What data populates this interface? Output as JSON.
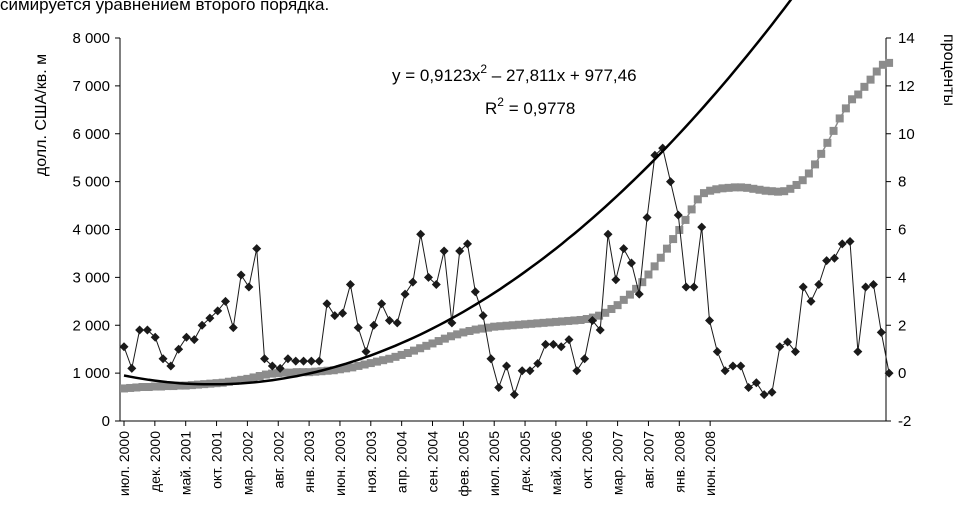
{
  "caption": "симируется уравнением второго порядка.",
  "chart_data": {
    "type": "line",
    "ylabel": "долл. США/кв. м",
    "y2label": "проценты",
    "ylim": [
      0,
      8000
    ],
    "y2lim": [
      -2,
      14
    ],
    "yticks": [
      "0",
      "1 000",
      "2 000",
      "3 000",
      "4 000",
      "5 000",
      "6 000",
      "7 000",
      "8 000"
    ],
    "y2ticks": [
      "-2",
      "0",
      "2",
      "4",
      "6",
      "8",
      "10",
      "12",
      "14"
    ],
    "x_tick_labels": [
      "июл. 2000",
      "дек. 2000",
      "май. 2001",
      "окт. 2001",
      "мар. 2002",
      "авг. 2002",
      "янв. 2003",
      "июн. 2003",
      "ноя. 2003",
      "апр. 2004",
      "сен. 2004",
      "фев. 2005",
      "июл. 2005",
      "дек. 2005",
      "май. 2006",
      "окт. 2006",
      "мар. 2007",
      "авг. 2007",
      "янв. 2008",
      "июн. 2008"
    ],
    "x_start": "июл. 2000",
    "trend_equation": {
      "prefix": "y = 0,9123x",
      "sup1": "2",
      "middle": " – 27,811x + 977,46",
      "r2_prefix": "R",
      "r2_sup": "2",
      "r2_value": " = 0,9778"
    },
    "series": [
      {
        "axis": "left",
        "marker": "square",
        "color": "#8c8c8c",
        "values": [
          680,
          690,
          700,
          710,
          710,
          720,
          720,
          730,
          730,
          740,
          740,
          750,
          760,
          770,
          780,
          790,
          800,
          820,
          840,
          860,
          880,
          910,
          940,
          970,
          990,
          1000,
          1010,
          1010,
          1020,
          1020,
          1020,
          1030,
          1040,
          1050,
          1060,
          1080,
          1100,
          1120,
          1150,
          1180,
          1210,
          1240,
          1270,
          1300,
          1340,
          1380,
          1420,
          1470,
          1520,
          1570,
          1620,
          1670,
          1720,
          1770,
          1810,
          1850,
          1880,
          1910,
          1930,
          1950,
          1970,
          1980,
          1990,
          2000,
          2010,
          2020,
          2030,
          2040,
          2050,
          2060,
          2070,
          2080,
          2090,
          2100,
          2110,
          2130,
          2160,
          2200,
          2260,
          2340,
          2420,
          2530,
          2640,
          2760,
          2900,
          3060,
          3230,
          3410,
          3600,
          3800,
          3990,
          4200,
          4420,
          4630,
          4760,
          4810,
          4840,
          4860,
          4870,
          4880,
          4880,
          4870,
          4850,
          4830,
          4810,
          4800,
          4790,
          4800,
          4850,
          4930,
          5030,
          5170,
          5360,
          5580,
          5810,
          6060,
          6320,
          6530,
          6720,
          6820,
          6980,
          7130,
          7300,
          7440,
          7480
        ]
      },
      {
        "axis": "right",
        "marker": "diamond",
        "color": "#1a1a1a",
        "values": [
          1.1,
          0.2,
          1.8,
          1.8,
          1.5,
          0.6,
          0.3,
          1.0,
          1.5,
          1.4,
          2.0,
          2.3,
          2.6,
          3.0,
          1.9,
          4.1,
          3.6,
          5.2,
          0.6,
          0.3,
          0.2,
          0.6,
          0.5,
          0.5,
          0.5,
          0.5,
          2.9,
          2.4,
          2.5,
          3.7,
          1.9,
          0.9,
          2.0,
          2.9,
          2.2,
          2.1,
          3.3,
          3.8,
          5.8,
          4.0,
          3.7,
          5.1,
          2.1,
          5.1,
          5.4,
          3.4,
          2.4,
          0.6,
          -0.6,
          0.3,
          -0.9,
          0.1,
          0.1,
          0.4,
          1.2,
          1.2,
          1.1,
          1.4,
          0.1,
          0.6,
          2.2,
          1.8,
          5.8,
          3.9,
          5.2,
          4.6,
          3.3,
          6.5,
          9.1,
          9.4,
          8.0,
          6.6,
          3.6,
          3.6,
          6.1,
          2.2,
          0.9,
          0.1,
          0.3,
          0.3,
          -0.6,
          -0.4,
          -0.9,
          -0.8,
          1.1,
          1.3,
          0.9,
          3.6,
          3.0,
          3.7,
          4.7,
          4.8,
          5.4,
          5.5,
          0.9,
          3.6,
          3.7,
          1.7,
          0.0
        ]
      },
      {
        "axis": "left",
        "marker": "none",
        "color": "#000000",
        "trend": true
      }
    ]
  }
}
